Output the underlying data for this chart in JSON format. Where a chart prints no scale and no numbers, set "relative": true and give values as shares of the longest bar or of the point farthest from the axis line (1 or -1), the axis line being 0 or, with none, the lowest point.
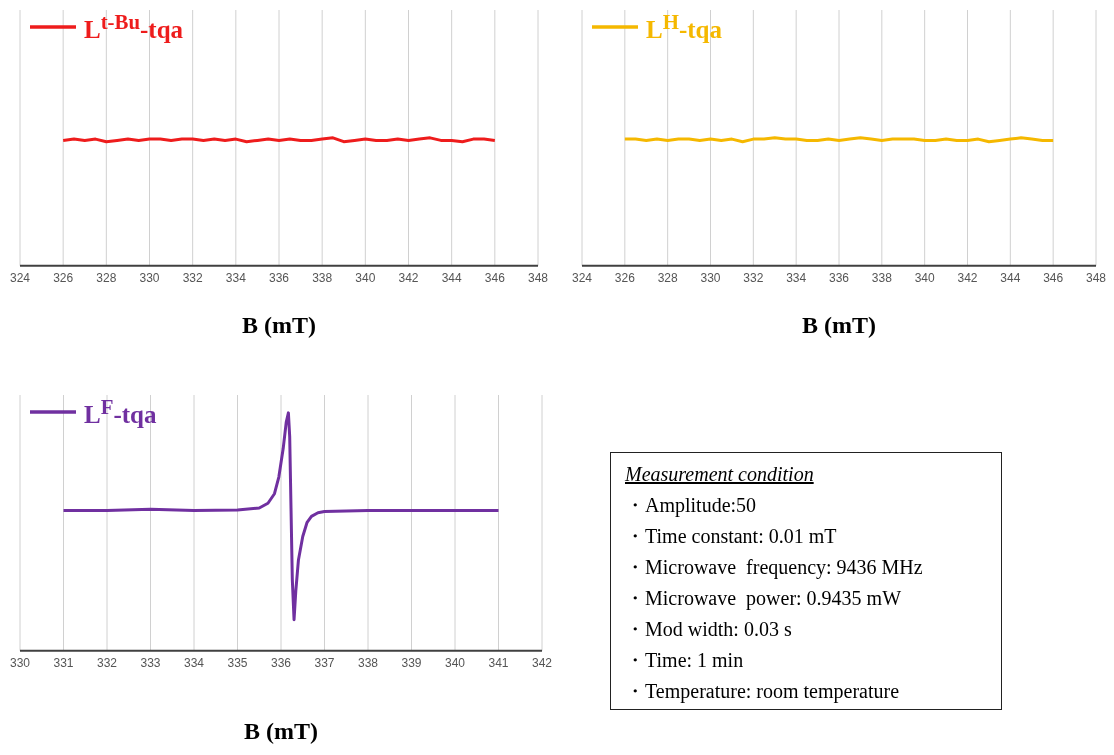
{
  "chart_data": [
    {
      "type": "line",
      "relative": true,
      "xlabel": "B (mT)",
      "xlim": [
        324,
        348
      ],
      "xticks": [
        324,
        326,
        328,
        330,
        332,
        334,
        336,
        338,
        340,
        342,
        344,
        346,
        348
      ],
      "grid": "x",
      "legend": "top left",
      "marker": "none",
      "x": [
        326,
        326.5,
        327,
        327.5,
        328,
        328.5,
        329,
        329.5,
        330,
        330.5,
        331,
        331.5,
        332,
        332.5,
        333,
        333.5,
        334,
        334.5,
        335,
        335.5,
        336,
        336.5,
        337,
        337.5,
        338,
        338.5,
        339,
        339.5,
        340,
        340.5,
        341,
        341.5,
        342,
        342.5,
        343,
        343.5,
        344,
        344.5,
        345,
        345.5,
        346
      ],
      "series": [
        {
          "name": "L$^{t-Bu}$-tqa",
          "color": "#ee1c1c",
          "values": [
            0.98,
            0.99,
            0.98,
            0.99,
            0.97,
            0.98,
            0.99,
            0.98,
            0.99,
            0.99,
            0.98,
            0.99,
            0.99,
            0.98,
            0.99,
            0.98,
            0.99,
            0.97,
            0.98,
            0.99,
            0.98,
            0.99,
            0.98,
            0.98,
            0.99,
            1.0,
            0.97,
            0.98,
            0.99,
            0.98,
            0.98,
            0.99,
            0.98,
            0.99,
            1.0,
            0.98,
            0.98,
            0.97,
            0.99,
            0.99,
            0.98
          ]
        }
      ]
    },
    {
      "type": "line",
      "relative": true,
      "xlabel": "B (mT)",
      "xlim": [
        324,
        348
      ],
      "xticks": [
        324,
        326,
        328,
        330,
        332,
        334,
        336,
        338,
        340,
        342,
        344,
        346,
        348
      ],
      "grid": "x",
      "legend": "top left",
      "marker": "none",
      "x": [
        326,
        326.5,
        327,
        327.5,
        328,
        328.5,
        329,
        329.5,
        330,
        330.5,
        331,
        331.5,
        332,
        332.5,
        333,
        333.5,
        334,
        334.5,
        335,
        335.5,
        336,
        336.5,
        337,
        337.5,
        338,
        338.5,
        339,
        339.5,
        340,
        340.5,
        341,
        341.5,
        342,
        342.5,
        343,
        343.5,
        344,
        344.5,
        345,
        345.5,
        346
      ],
      "series": [
        {
          "name": "L$^{H}$-tqa",
          "color": "#f5b800",
          "values": [
            0.99,
            0.99,
            0.98,
            0.99,
            0.98,
            0.99,
            0.99,
            0.98,
            0.99,
            0.98,
            0.99,
            0.97,
            0.99,
            0.99,
            1.0,
            0.99,
            0.99,
            0.98,
            0.98,
            0.99,
            0.98,
            0.99,
            1.0,
            0.99,
            0.98,
            0.99,
            0.99,
            0.99,
            0.98,
            0.98,
            0.99,
            0.98,
            0.98,
            0.99,
            0.97,
            0.98,
            0.99,
            1.0,
            0.99,
            0.98,
            0.98
          ]
        }
      ]
    },
    {
      "type": "line",
      "relative": true,
      "xlabel": "B (mT)",
      "xlim": [
        330,
        342
      ],
      "xticks": [
        330,
        331,
        332,
        333,
        334,
        335,
        336,
        337,
        338,
        339,
        340,
        341,
        342
      ],
      "grid": "x",
      "legend": "top left",
      "marker": "none",
      "x": [
        331,
        332,
        333,
        334,
        335,
        335.5,
        335.7,
        335.85,
        335.95,
        336.05,
        336.12,
        336.17,
        336.2,
        336.23,
        336.26,
        336.3,
        336.34,
        336.4,
        336.5,
        336.6,
        336.7,
        336.85,
        337,
        338,
        339,
        340,
        341
      ],
      "series": [
        {
          "name": "L$^{F}$-tqa",
          "color": "#7030a0",
          "values": [
            0.59,
            0.59,
            0.595,
            0.59,
            0.592,
            0.6,
            0.62,
            0.66,
            0.73,
            0.85,
            0.96,
            1,
            0.9,
            0.6,
            0.3,
            0.13,
            0.25,
            0.38,
            0.48,
            0.54,
            0.565,
            0.58,
            0.585,
            0.59,
            0.59,
            0.59,
            0.59
          ]
        }
      ]
    },
    {
      "type": "other",
      "title": "Measurement condition",
      "annotations": [
        "・Amplitude:50",
        "・Time constant: 0.01 mT",
        "・Microwave  frequency: 9436 MHz",
        "・Microwave  power: 0.9435 mW",
        "・Mod width: 0.03 s",
        "・Time: 1 min",
        "・Temperature: room temperature"
      ]
    }
  ]
}
